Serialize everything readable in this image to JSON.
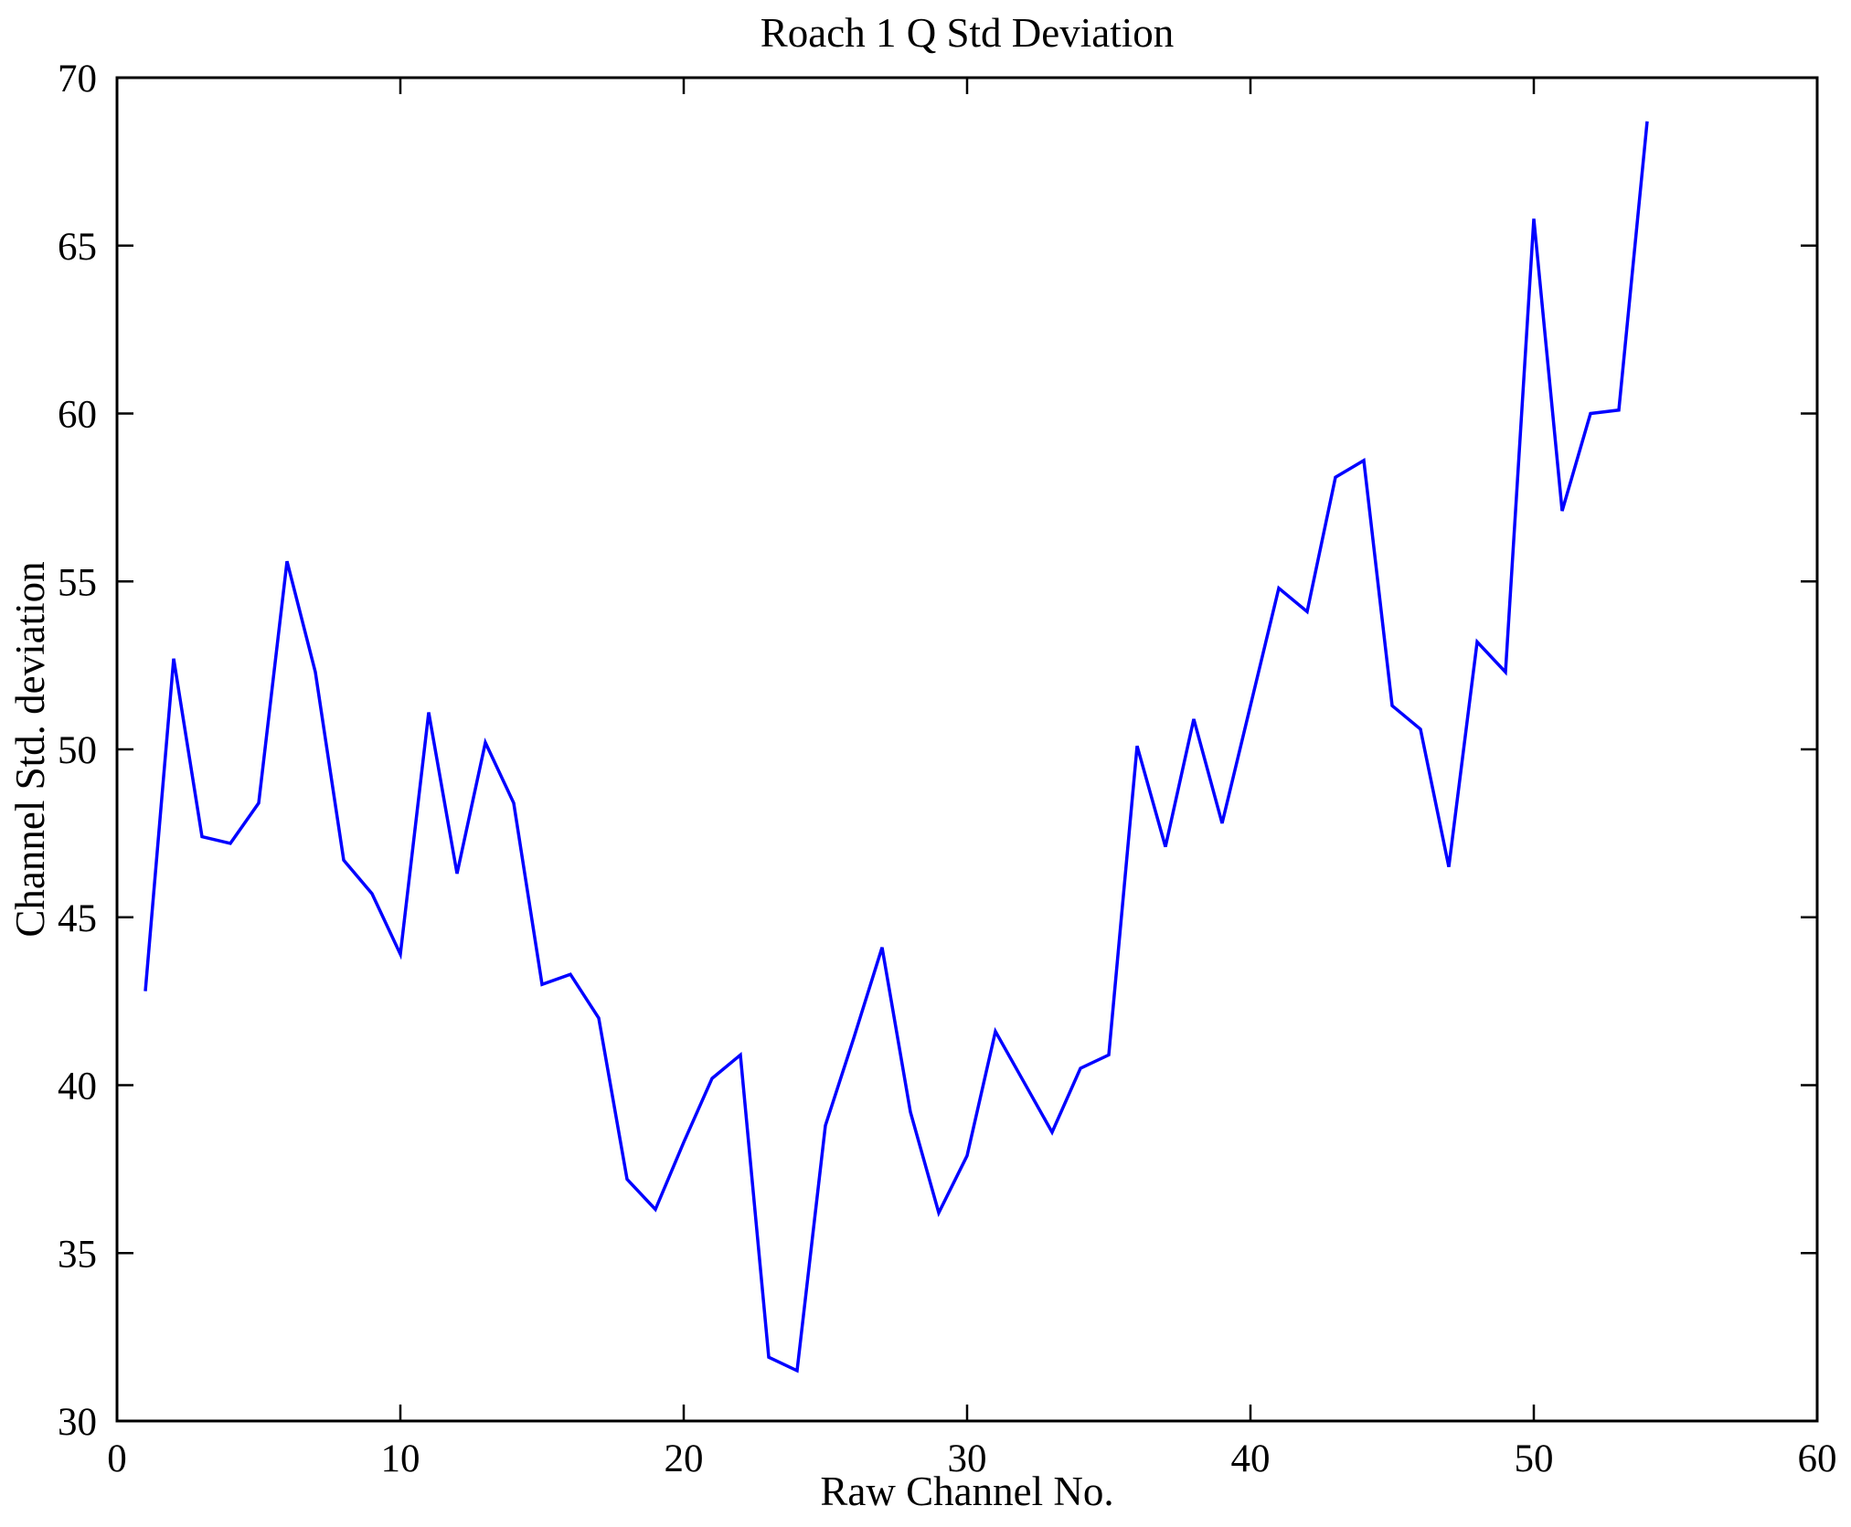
{
  "chart_data": {
    "type": "line",
    "title": "Roach 1 Q Std Deviation",
    "xlabel": "Raw Channel No.",
    "ylabel": "Channel Std. deviation",
    "xlim": [
      0,
      60
    ],
    "ylim": [
      30,
      70
    ],
    "xticks": [
      0,
      10,
      20,
      30,
      40,
      50,
      60
    ],
    "yticks": [
      30,
      35,
      40,
      45,
      50,
      55,
      60,
      65,
      70
    ],
    "grid": false,
    "legend": "none",
    "axis_color": "#000000",
    "line_color": "#0000FF",
    "series": [
      {
        "name": "channel-std-deviation",
        "x": [
          1,
          2,
          3,
          4,
          5,
          6,
          7,
          8,
          9,
          10,
          11,
          12,
          13,
          14,
          15,
          16,
          17,
          18,
          19,
          20,
          21,
          22,
          23,
          24,
          25,
          26,
          27,
          28,
          29,
          30,
          31,
          32,
          33,
          34,
          35,
          36,
          37,
          38,
          39,
          40,
          41,
          42,
          43,
          44,
          45,
          46,
          47,
          48,
          49,
          50,
          51,
          52,
          53,
          54
        ],
        "y": [
          42.8,
          52.7,
          47.4,
          47.2,
          48.4,
          55.6,
          52.3,
          46.7,
          45.7,
          43.9,
          51.1,
          46.3,
          50.2,
          48.4,
          43.0,
          43.3,
          42.0,
          37.2,
          36.3,
          38.3,
          40.2,
          40.9,
          31.9,
          31.5,
          38.8,
          41.4,
          44.1,
          39.2,
          36.2,
          37.9,
          41.6,
          40.1,
          38.6,
          40.5,
          40.9,
          50.1,
          47.1,
          50.9,
          47.8,
          51.3,
          54.8,
          54.1,
          58.1,
          58.6,
          51.3,
          50.6,
          46.5,
          53.2,
          52.3,
          65.8,
          57.1,
          60.0,
          60.1,
          68.7
        ]
      }
    ]
  }
}
